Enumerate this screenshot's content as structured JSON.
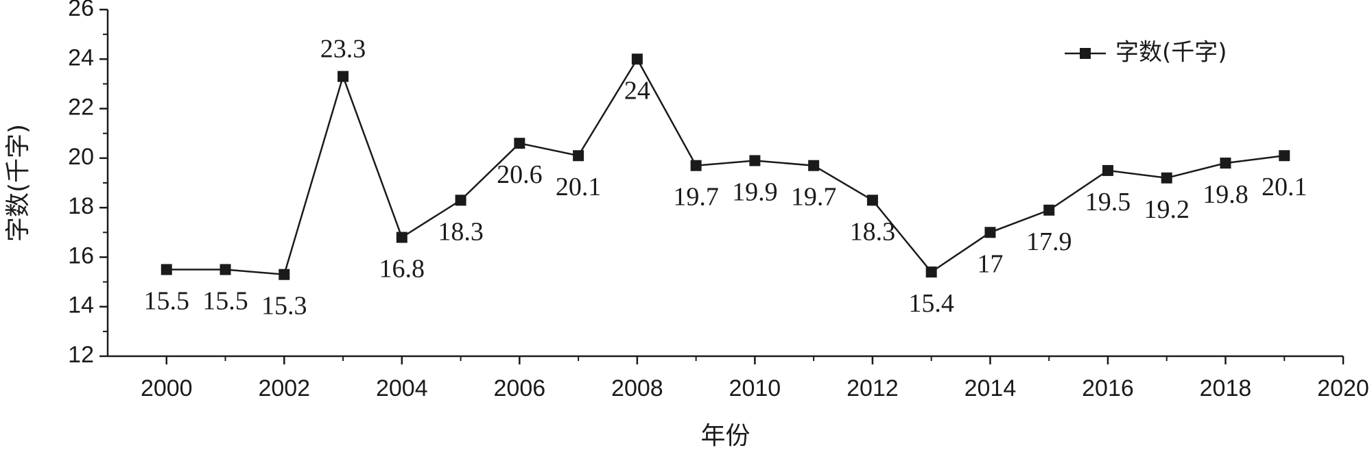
{
  "chart_data": {
    "type": "line",
    "title": "",
    "xlabel": "年份",
    "ylabel": "字数(千字)",
    "xlim": [
      1999,
      2020
    ],
    "ylim": [
      12,
      26
    ],
    "xticks": [
      2000,
      2002,
      2004,
      2006,
      2008,
      2010,
      2012,
      2014,
      2016,
      2018,
      2020
    ],
    "yticks": [
      12,
      14,
      16,
      18,
      20,
      22,
      24,
      26
    ],
    "grid": false,
    "legend_position": "top-right",
    "marker": "square",
    "line_color": "#1a1a1a",
    "series": [
      {
        "name": "字数(千字)",
        "x": [
          2000,
          2001,
          2002,
          2003,
          2004,
          2005,
          2006,
          2007,
          2008,
          2009,
          2010,
          2011,
          2012,
          2013,
          2014,
          2015,
          2016,
          2017,
          2018,
          2019
        ],
        "values": [
          15.5,
          15.5,
          15.3,
          23.3,
          16.8,
          18.3,
          20.6,
          20.1,
          24,
          19.7,
          19.9,
          19.7,
          18.3,
          15.4,
          17,
          17.9,
          19.5,
          19.2,
          19.8,
          20.1
        ],
        "labels": [
          "15.5",
          "15.5",
          "15.3",
          "23.3",
          "16.8",
          "18.3",
          "20.6",
          "20.1",
          "24",
          "19.7",
          "19.9",
          "19.7",
          "18.3",
          "15.4",
          "17",
          "17.9",
          "19.5",
          "19.2",
          "19.8",
          "20.1"
        ],
        "label_side": [
          "below",
          "below",
          "below",
          "above",
          "below",
          "below",
          "below",
          "below",
          "below",
          "below",
          "below",
          "below",
          "below",
          "below",
          "below",
          "below",
          "below",
          "below",
          "below",
          "below"
        ]
      }
    ]
  }
}
